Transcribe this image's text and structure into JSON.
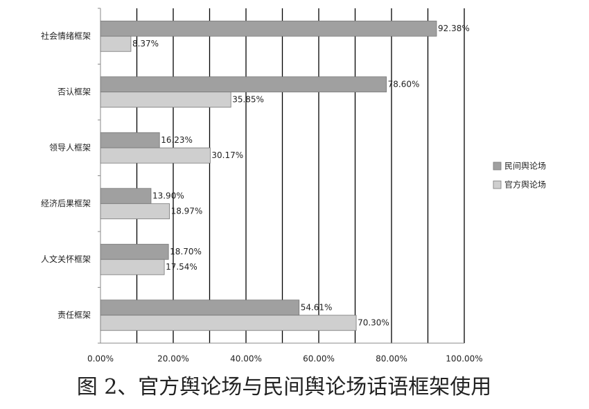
{
  "chart_data": {
    "type": "bar",
    "orientation": "horizontal",
    "caption": "图 2、官方舆论场与民间舆论场话语框架使用",
    "categories": [
      "社会情绪框架",
      "否认框架",
      "领导人框架",
      "经济后果框架",
      "人文关怀框架",
      "责任框架"
    ],
    "series": [
      {
        "name": "民间舆论场",
        "color": "#a0a0a0",
        "values": [
          92.38,
          78.6,
          16.23,
          13.9,
          18.7,
          54.61
        ],
        "value_labels": [
          "92.38%",
          "78.60%",
          "16.23%",
          "13.90%",
          "18.70%",
          "54.61%"
        ]
      },
      {
        "name": "官方舆论场",
        "color": "#cfcfcf",
        "values": [
          8.37,
          35.85,
          30.17,
          18.97,
          17.54,
          70.3
        ],
        "value_labels": [
          "8.37%",
          "35.85%",
          "30.17%",
          "18.97%",
          "17.54%",
          "70.30%"
        ]
      }
    ],
    "xlim": [
      0,
      100
    ],
    "xticks": [
      {
        "value": 0,
        "label": "0.00%"
      },
      {
        "value": 20,
        "label": "20.00%"
      },
      {
        "value": 40,
        "label": "40.00%"
      },
      {
        "value": 60,
        "label": "60.00%"
      },
      {
        "value": 80,
        "label": "80.00%"
      },
      {
        "value": 100,
        "label": "100.00%"
      }
    ],
    "x_minor_grid": [
      10,
      30,
      50,
      70,
      90
    ],
    "grid": true,
    "legend": "right"
  }
}
